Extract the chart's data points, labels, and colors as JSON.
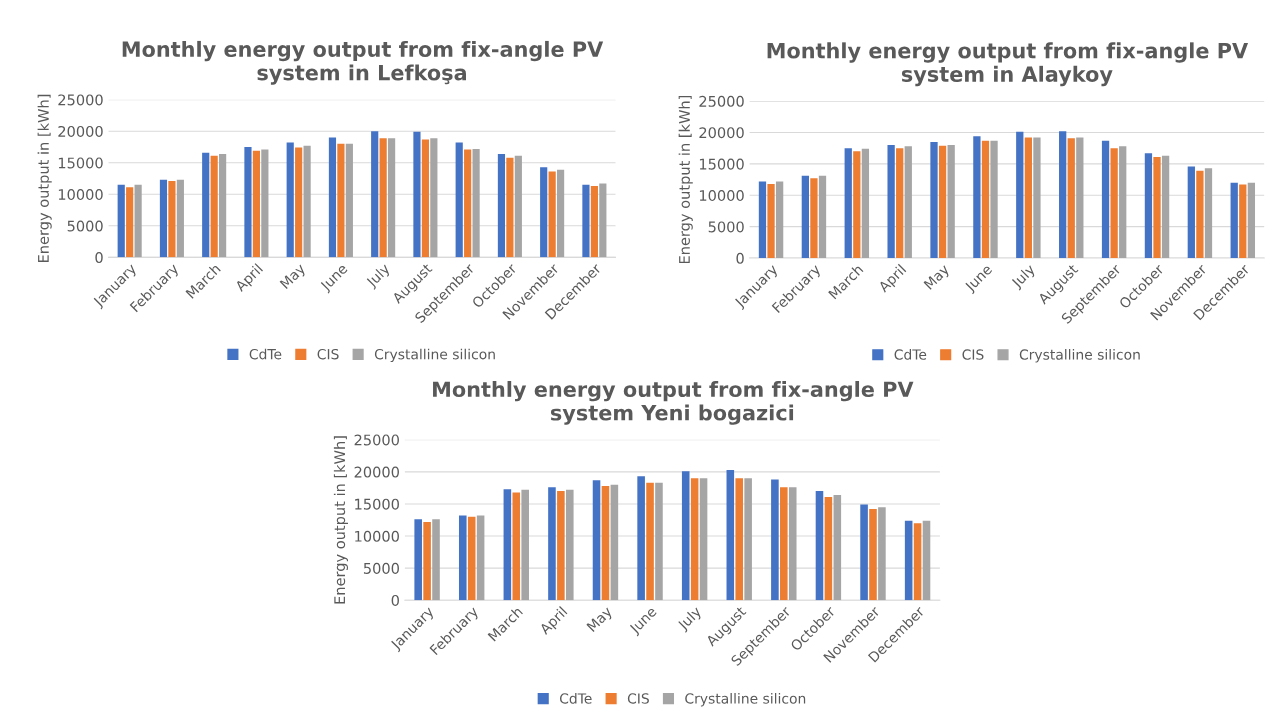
{
  "chart_data": [
    {
      "type": "bar",
      "title": "Monthly energy output from fix-angle PV\nsystem in Lefkoşa",
      "ylabel": "Energy output in [kWh]",
      "categories": [
        "January",
        "February",
        "March",
        "April",
        "May",
        "June",
        "July",
        "August",
        "September",
        "October",
        "November",
        "December"
      ],
      "series": [
        {
          "name": "CdTe",
          "color": "#4472c4",
          "values": [
            11500,
            12300,
            16600,
            17500,
            18200,
            19000,
            20000,
            19900,
            18200,
            16400,
            14300,
            11500
          ]
        },
        {
          "name": "CIS",
          "color": "#ed7d31",
          "values": [
            11100,
            12100,
            16100,
            16900,
            17400,
            18000,
            18900,
            18700,
            17100,
            15800,
            13600,
            11300
          ]
        },
        {
          "name": "Crystalline silicon",
          "color": "#a5a5a5",
          "values": [
            11500,
            12300,
            16400,
            17100,
            17700,
            18000,
            18900,
            18900,
            17200,
            16100,
            13900,
            11700
          ]
        }
      ],
      "ylim": [
        0,
        25000
      ],
      "yticks": [
        0,
        5000,
        10000,
        15000,
        20000,
        25000
      ],
      "grid": "y",
      "legend": "bottom"
    },
    {
      "type": "bar",
      "title": "Monthly energy output from fix-angle PV\nsystem in Alaykoy",
      "ylabel": "Energy output in [kWh]",
      "categories": [
        "January",
        "February",
        "March",
        "April",
        "May",
        "June",
        "July",
        "August",
        "September",
        "October",
        "November",
        "December"
      ],
      "series": [
        {
          "name": "CdTe",
          "color": "#4472c4",
          "values": [
            12200,
            13100,
            17500,
            18000,
            18500,
            19400,
            20100,
            20200,
            18700,
            16700,
            14600,
            12000
          ]
        },
        {
          "name": "CIS",
          "color": "#ed7d31",
          "values": [
            11800,
            12700,
            17000,
            17500,
            17900,
            18700,
            19200,
            19100,
            17500,
            16100,
            13900,
            11700
          ]
        },
        {
          "name": "Crystalline silicon",
          "color": "#a5a5a5",
          "values": [
            12200,
            13100,
            17400,
            17800,
            18000,
            18700,
            19200,
            19200,
            17800,
            16300,
            14300,
            12000
          ]
        }
      ],
      "ylim": [
        0,
        25000
      ],
      "yticks": [
        0,
        5000,
        10000,
        15000,
        20000,
        25000
      ],
      "grid": "y",
      "legend": "bottom"
    },
    {
      "type": "bar",
      "title": "Monthly energy output from fix-angle PV\nsystem Yeni bogazici",
      "ylabel": "Energy output in [kWh]",
      "categories": [
        "January",
        "February",
        "March",
        "April",
        "May",
        "June",
        "July",
        "August",
        "September",
        "October",
        "November",
        "December"
      ],
      "series": [
        {
          "name": "CdTe",
          "color": "#4472c4",
          "values": [
            12600,
            13200,
            17300,
            17600,
            18700,
            19300,
            20100,
            20300,
            18800,
            17000,
            14900,
            12400
          ]
        },
        {
          "name": "CIS",
          "color": "#ed7d31",
          "values": [
            12200,
            13000,
            16800,
            17000,
            17800,
            18300,
            19000,
            19000,
            17600,
            16100,
            14200,
            12000
          ]
        },
        {
          "name": "Crystalline silicon",
          "color": "#a5a5a5",
          "values": [
            12600,
            13200,
            17200,
            17200,
            18000,
            18300,
            19000,
            19000,
            17600,
            16400,
            14500,
            12400
          ]
        }
      ],
      "ylim": [
        0,
        25000
      ],
      "yticks": [
        0,
        5000,
        10000,
        15000,
        20000,
        25000
      ],
      "grid": "y",
      "legend": "bottom"
    }
  ]
}
